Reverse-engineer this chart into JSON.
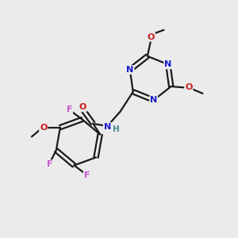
{
  "background_color": "#ebebeb",
  "bond_color": "#1a1a1a",
  "atom_colors": {
    "N": "#1a1acc",
    "O": "#cc1a1a",
    "F": "#cc55cc",
    "H": "#448888"
  },
  "figsize": [
    3.0,
    3.0
  ],
  "dpi": 100
}
